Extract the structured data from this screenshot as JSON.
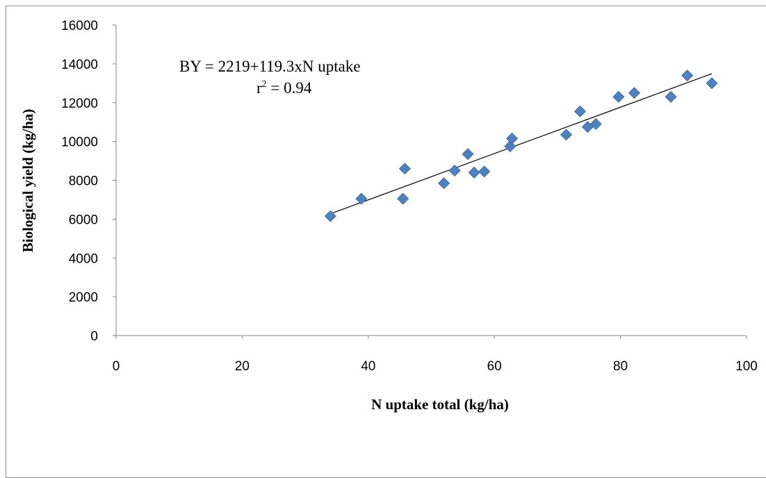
{
  "chart_data": {
    "type": "scatter",
    "xlabel": "N uptake total (kg/ha)",
    "ylabel": "Biological yield (kg/ha)",
    "xlim": [
      0,
      100
    ],
    "ylim": [
      0,
      16000
    ],
    "x_ticks": [
      "0",
      "20",
      "40",
      "60",
      "80",
      "100"
    ],
    "y_ticks": [
      "0",
      "2000",
      "4000",
      "6000",
      "8000",
      "10000",
      "12000",
      "14000",
      "16000"
    ],
    "grid": false,
    "legend": "none",
    "marker_color": "#4f81bd",
    "annotation": {
      "equation": "BY = 2219+119.3xN uptake",
      "r2_prefix": "r",
      "r2_sup": "2",
      "r2_value": " = 0.94"
    },
    "trendline": {
      "intercept": 2219,
      "slope": 119.3,
      "x_range": [
        34,
        94.5
      ]
    },
    "series": [
      {
        "x": [
          34.0,
          38.9,
          45.5,
          45.8,
          52.0,
          53.7,
          55.8,
          56.8,
          58.4,
          62.5,
          62.8,
          71.4,
          73.6,
          74.8,
          76.1,
          79.7,
          82.2,
          88.0,
          90.6,
          94.5
        ],
        "y": [
          6150,
          7050,
          7050,
          8600,
          7850,
          8500,
          9350,
          8400,
          8450,
          9750,
          10150,
          10350,
          11550,
          10750,
          10900,
          12300,
          12500,
          12300,
          13400,
          13000
        ]
      }
    ]
  }
}
